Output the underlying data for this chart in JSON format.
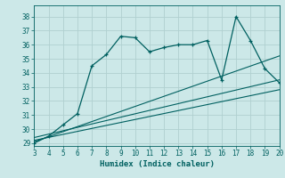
{
  "xlabel": "Humidex (Indice chaleur)",
  "bg_color": "#cce8e8",
  "grid_color": "#b0d0d0",
  "line_color": "#006060",
  "xlim": [
    3,
    20
  ],
  "ylim": [
    28.8,
    38.8
  ],
  "yticks": [
    29,
    30,
    31,
    32,
    33,
    34,
    35,
    36,
    37,
    38
  ],
  "xticks": [
    3,
    4,
    5,
    6,
    7,
    8,
    9,
    10,
    11,
    12,
    13,
    14,
    15,
    16,
    17,
    18,
    19,
    20
  ],
  "main_x": [
    3,
    4,
    5,
    6,
    7,
    8,
    9,
    10,
    11,
    12,
    13,
    14,
    15,
    16,
    17,
    18,
    19,
    20
  ],
  "main_y": [
    29.0,
    29.5,
    30.3,
    31.1,
    34.5,
    35.3,
    36.6,
    36.5,
    35.5,
    35.8,
    36.0,
    36.0,
    36.3,
    33.5,
    38.0,
    36.3,
    34.3,
    33.3
  ],
  "line1_x": [
    3,
    20
  ],
  "line1_y": [
    29.2,
    32.8
  ],
  "line2_x": [
    3,
    20
  ],
  "line2_y": [
    29.4,
    33.5
  ],
  "line3_x": [
    3,
    20
  ],
  "line3_y": [
    29.1,
    35.2
  ]
}
